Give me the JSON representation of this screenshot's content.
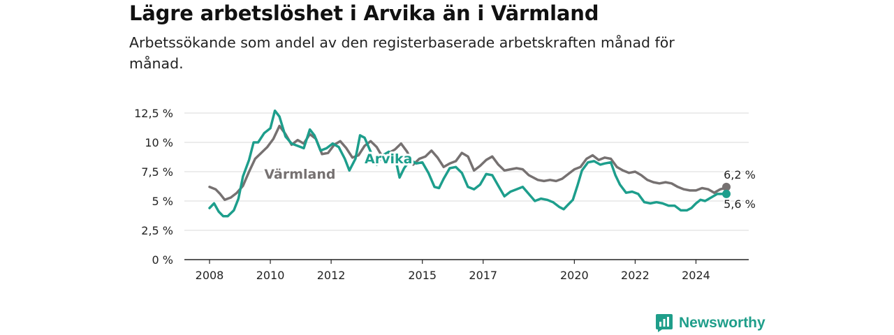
{
  "header": {
    "title": "Lägre arbetslöshet i Arvika än i Värmland",
    "subtitle": "Arbetssökande som andel av den registerbaserade arbetskraften månad för månad."
  },
  "brand": {
    "name": "Newsworthy",
    "icon": "bar-chart-logo-icon",
    "color": "#1f9e8a"
  },
  "chart_data": {
    "type": "line",
    "xlabel": "",
    "ylabel": "",
    "x_unit": "year (monthly data)",
    "xlim": [
      2008,
      2025
    ],
    "ylim": [
      0,
      12.5
    ],
    "y_ticks": [
      {
        "value": 0,
        "label": "0 %"
      },
      {
        "value": 2.5,
        "label": "2,5 %"
      },
      {
        "value": 5,
        "label": "5 %"
      },
      {
        "value": 7.5,
        "label": "7,5 %"
      },
      {
        "value": 10,
        "label": "10 %"
      },
      {
        "value": 12.5,
        "label": "12,5 %"
      }
    ],
    "x_ticks": [
      {
        "value": 2008,
        "label": "2008"
      },
      {
        "value": 2010,
        "label": "2010"
      },
      {
        "value": 2012,
        "label": "2012"
      },
      {
        "value": 2015,
        "label": "2015"
      },
      {
        "value": 2017,
        "label": "2017"
      },
      {
        "value": 2020,
        "label": "2020"
      },
      {
        "value": 2022,
        "label": "2022"
      },
      {
        "value": 2024,
        "label": "2024"
      }
    ],
    "grid": "horizontal",
    "legend": "inline labels",
    "series": [
      {
        "name": "Värmland",
        "color": "#767171",
        "label_at": [
          2009.8,
          6.9
        ],
        "end_label": "6,2 %",
        "points": [
          [
            2008.0,
            6.2
          ],
          [
            2008.2,
            6.0
          ],
          [
            2008.35,
            5.6
          ],
          [
            2008.5,
            5.1
          ],
          [
            2008.7,
            5.3
          ],
          [
            2008.9,
            5.7
          ],
          [
            2009.1,
            6.3
          ],
          [
            2009.3,
            7.5
          ],
          [
            2009.5,
            8.6
          ],
          [
            2009.7,
            9.1
          ],
          [
            2009.9,
            9.6
          ],
          [
            2010.1,
            10.3
          ],
          [
            2010.3,
            11.4
          ],
          [
            2010.5,
            10.7
          ],
          [
            2010.7,
            9.8
          ],
          [
            2010.9,
            10.2
          ],
          [
            2011.1,
            9.9
          ],
          [
            2011.3,
            10.7
          ],
          [
            2011.5,
            10.3
          ],
          [
            2011.7,
            9.0
          ],
          [
            2011.9,
            9.1
          ],
          [
            2012.1,
            9.8
          ],
          [
            2012.3,
            10.1
          ],
          [
            2012.5,
            9.5
          ],
          [
            2012.7,
            8.7
          ],
          [
            2012.9,
            8.9
          ],
          [
            2013.1,
            9.7
          ],
          [
            2013.3,
            10.1
          ],
          [
            2013.5,
            9.6
          ],
          [
            2013.7,
            8.7
          ],
          [
            2013.9,
            9.1
          ],
          [
            2014.1,
            9.4
          ],
          [
            2014.3,
            9.9
          ],
          [
            2014.5,
            9.2
          ],
          [
            2014.7,
            8.1
          ],
          [
            2014.9,
            8.6
          ],
          [
            2015.1,
            8.8
          ],
          [
            2015.3,
            9.3
          ],
          [
            2015.5,
            8.7
          ],
          [
            2015.7,
            7.9
          ],
          [
            2015.9,
            8.2
          ],
          [
            2016.1,
            8.4
          ],
          [
            2016.3,
            9.1
          ],
          [
            2016.5,
            8.8
          ],
          [
            2016.7,
            7.6
          ],
          [
            2016.9,
            8.0
          ],
          [
            2017.1,
            8.5
          ],
          [
            2017.3,
            8.8
          ],
          [
            2017.5,
            8.1
          ],
          [
            2017.7,
            7.6
          ],
          [
            2017.9,
            7.7
          ],
          [
            2018.1,
            7.8
          ],
          [
            2018.3,
            7.7
          ],
          [
            2018.5,
            7.2
          ],
          [
            2018.8,
            6.8
          ],
          [
            2019.0,
            6.7
          ],
          [
            2019.2,
            6.8
          ],
          [
            2019.4,
            6.7
          ],
          [
            2019.6,
            6.9
          ],
          [
            2019.8,
            7.3
          ],
          [
            2020.0,
            7.7
          ],
          [
            2020.2,
            7.9
          ],
          [
            2020.4,
            8.6
          ],
          [
            2020.6,
            8.9
          ],
          [
            2020.8,
            8.5
          ],
          [
            2021.0,
            8.7
          ],
          [
            2021.2,
            8.6
          ],
          [
            2021.4,
            7.9
          ],
          [
            2021.6,
            7.6
          ],
          [
            2021.8,
            7.4
          ],
          [
            2022.0,
            7.5
          ],
          [
            2022.2,
            7.2
          ],
          [
            2022.4,
            6.8
          ],
          [
            2022.6,
            6.6
          ],
          [
            2022.8,
            6.5
          ],
          [
            2023.0,
            6.6
          ],
          [
            2023.2,
            6.5
          ],
          [
            2023.4,
            6.2
          ],
          [
            2023.6,
            6.0
          ],
          [
            2023.8,
            5.9
          ],
          [
            2024.0,
            5.9
          ],
          [
            2024.2,
            6.1
          ],
          [
            2024.4,
            6.0
          ],
          [
            2024.6,
            5.7
          ],
          [
            2024.8,
            6.0
          ],
          [
            2024.95,
            6.1
          ],
          [
            2025.0,
            6.2
          ]
        ]
      },
      {
        "name": "Arvika",
        "color": "#1d9e8c",
        "label_at": [
          2013.1,
          8.2
        ],
        "end_label": "5,6 %",
        "points": [
          [
            2008.0,
            4.4
          ],
          [
            2008.15,
            4.8
          ],
          [
            2008.3,
            4.1
          ],
          [
            2008.45,
            3.7
          ],
          [
            2008.6,
            3.7
          ],
          [
            2008.8,
            4.2
          ],
          [
            2008.95,
            5.2
          ],
          [
            2009.1,
            7.1
          ],
          [
            2009.3,
            8.5
          ],
          [
            2009.45,
            10.0
          ],
          [
            2009.6,
            10.0
          ],
          [
            2009.8,
            10.8
          ],
          [
            2010.0,
            11.2
          ],
          [
            2010.15,
            12.7
          ],
          [
            2010.3,
            12.2
          ],
          [
            2010.5,
            10.5
          ],
          [
            2010.7,
            9.9
          ],
          [
            2010.9,
            9.7
          ],
          [
            2011.1,
            9.5
          ],
          [
            2011.3,
            11.1
          ],
          [
            2011.45,
            10.6
          ],
          [
            2011.65,
            9.3
          ],
          [
            2011.85,
            9.5
          ],
          [
            2012.05,
            9.9
          ],
          [
            2012.25,
            9.6
          ],
          [
            2012.45,
            8.6
          ],
          [
            2012.6,
            7.6
          ],
          [
            2012.8,
            8.6
          ],
          [
            2012.95,
            10.6
          ],
          [
            2013.1,
            10.4
          ],
          [
            2013.3,
            9.2
          ],
          [
            2013.5,
            8.1
          ],
          [
            2013.7,
            8.9
          ],
          [
            2013.9,
            9.2
          ],
          [
            2014.1,
            8.8
          ],
          [
            2014.25,
            7.0
          ],
          [
            2014.4,
            7.8
          ],
          [
            2014.6,
            8.5
          ],
          [
            2014.8,
            8.2
          ],
          [
            2015.0,
            8.3
          ],
          [
            2015.2,
            7.4
          ],
          [
            2015.4,
            6.2
          ],
          [
            2015.55,
            6.1
          ],
          [
            2015.7,
            6.9
          ],
          [
            2015.9,
            7.8
          ],
          [
            2016.1,
            7.9
          ],
          [
            2016.3,
            7.4
          ],
          [
            2016.5,
            6.2
          ],
          [
            2016.7,
            6.0
          ],
          [
            2016.9,
            6.4
          ],
          [
            2017.1,
            7.3
          ],
          [
            2017.3,
            7.2
          ],
          [
            2017.5,
            6.3
          ],
          [
            2017.7,
            5.4
          ],
          [
            2017.9,
            5.8
          ],
          [
            2018.1,
            6.0
          ],
          [
            2018.3,
            6.2
          ],
          [
            2018.5,
            5.6
          ],
          [
            2018.7,
            5.0
          ],
          [
            2018.9,
            5.2
          ],
          [
            2019.1,
            5.1
          ],
          [
            2019.3,
            4.9
          ],
          [
            2019.5,
            4.5
          ],
          [
            2019.65,
            4.3
          ],
          [
            2019.8,
            4.7
          ],
          [
            2019.95,
            5.1
          ],
          [
            2020.1,
            6.3
          ],
          [
            2020.25,
            7.6
          ],
          [
            2020.45,
            8.3
          ],
          [
            2020.65,
            8.4
          ],
          [
            2020.85,
            8.1
          ],
          [
            2021.0,
            8.2
          ],
          [
            2021.2,
            8.3
          ],
          [
            2021.35,
            7.2
          ],
          [
            2021.5,
            6.4
          ],
          [
            2021.7,
            5.7
          ],
          [
            2021.9,
            5.8
          ],
          [
            2022.1,
            5.6
          ],
          [
            2022.3,
            4.9
          ],
          [
            2022.5,
            4.8
          ],
          [
            2022.7,
            4.9
          ],
          [
            2022.9,
            4.8
          ],
          [
            2023.1,
            4.6
          ],
          [
            2023.3,
            4.6
          ],
          [
            2023.5,
            4.2
          ],
          [
            2023.7,
            4.2
          ],
          [
            2023.85,
            4.4
          ],
          [
            2024.0,
            4.8
          ],
          [
            2024.15,
            5.1
          ],
          [
            2024.3,
            5.0
          ],
          [
            2024.5,
            5.3
          ],
          [
            2024.7,
            5.6
          ],
          [
            2024.85,
            5.6
          ],
          [
            2025.0,
            5.6
          ]
        ]
      }
    ]
  }
}
